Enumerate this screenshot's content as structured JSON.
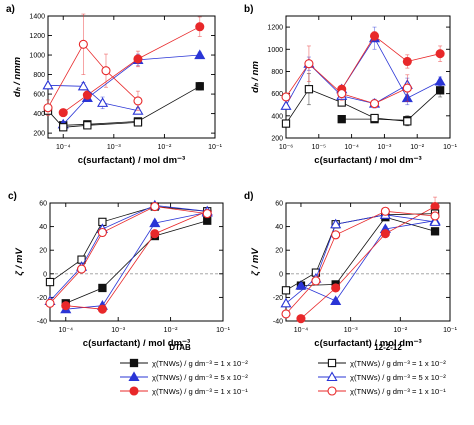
{
  "colors": {
    "black": "#111111",
    "blue": "#2a35d6",
    "red": "#e8282a",
    "grid": "#9a9a9a"
  },
  "legend": {
    "group_left": "DTAB",
    "group_right": "12-2-12",
    "entries_left": [
      "χ(TNWs) / g dm⁻³ = 1 x 10⁻²",
      "χ(TNWs) / g dm⁻³ = 5 x 10⁻²",
      "χ(TNWs) / g dm⁻³ = 1 x 10⁻¹"
    ],
    "entries_right": [
      "χ(TNWs) / g dm⁻³ = 1 x 10⁻²",
      "χ(TNWs) / g dm⁻³ = 5 x 10⁻²",
      "χ(TNWs) / g dm⁻³ = 1 x 10⁻¹"
    ]
  },
  "chart_data": [
    {
      "id": "a",
      "type": "line",
      "panel_label": "a)",
      "xlabel": "c(surfactant) / mol dm⁻³",
      "ylabel": "dₕ / nmm",
      "xscale": "log",
      "xlim": [
        5e-05,
        0.1
      ],
      "ylim": [
        150,
        1400
      ],
      "xticks": [
        0.0001,
        0.001,
        0.01,
        0.1
      ],
      "xtick_labels": [
        "10⁻⁴",
        "10⁻³",
        "10⁻²",
        "10⁻¹"
      ],
      "yticks": [
        200,
        400,
        600,
        800,
        1000,
        1200,
        1400
      ],
      "series": [
        {
          "color": "black",
          "filled": true,
          "marker": "square",
          "x": [
            0.0001,
            0.0003,
            0.003,
            0.05
          ],
          "y": [
            280,
            290,
            320,
            680
          ],
          "err": [
            0,
            20,
            30,
            40
          ]
        },
        {
          "color": "blue",
          "filled": true,
          "marker": "triangle",
          "x": [
            0.0001,
            0.0003,
            0.003,
            0.05
          ],
          "y": [
            290,
            560,
            950,
            1000
          ],
          "err": [
            0,
            30,
            60,
            30
          ]
        },
        {
          "color": "red",
          "filled": true,
          "marker": "circle",
          "x": [
            0.0001,
            0.0003,
            0.003,
            0.05
          ],
          "y": [
            410,
            590,
            960,
            1290
          ],
          "err": [
            0,
            40,
            80,
            100
          ]
        },
        {
          "color": "black",
          "filled": false,
          "marker": "square",
          "x": [
            0.0001,
            5e-05,
            0.0003,
            0.003
          ],
          "y": [
            260,
            430,
            280,
            310
          ],
          "err": [
            0,
            20,
            20,
            20
          ],
          "order": [
            1,
            0,
            2,
            3
          ]
        },
        {
          "color": "blue",
          "filled": false,
          "marker": "triangle",
          "x": [
            5e-05,
            0.00025,
            0.0006,
            0.003
          ],
          "y": [
            690,
            680,
            510,
            430
          ],
          "err": [
            20,
            40,
            60,
            30
          ]
        },
        {
          "color": "red",
          "filled": false,
          "marker": "circle",
          "x": [
            5e-05,
            0.00025,
            0.0007,
            0.003
          ],
          "y": [
            460,
            1110,
            840,
            530
          ],
          "err": [
            80,
            310,
            170,
            100
          ]
        }
      ]
    },
    {
      "id": "b",
      "type": "line",
      "panel_label": "b)",
      "xlabel": "c(surfactant) / mol dm⁻³",
      "ylabel": "dₕ / nm",
      "xscale": "log",
      "xlim": [
        1e-06,
        0.1
      ],
      "ylim": [
        200,
        1300
      ],
      "xticks": [
        1e-06,
        1e-05,
        0.0001,
        0.001,
        0.01,
        0.1
      ],
      "xtick_labels": [
        "10⁻⁶",
        "10⁻⁵",
        "10⁻⁴",
        "10⁻³",
        "10⁻²",
        "10⁻¹"
      ],
      "yticks": [
        200,
        400,
        600,
        800,
        1000,
        1200
      ],
      "series": [
        {
          "color": "black",
          "filled": true,
          "marker": "square",
          "x": [
            5e-05,
            0.0005,
            0.005,
            0.05
          ],
          "y": [
            370,
            370,
            360,
            630
          ],
          "err": [
            0,
            20,
            40,
            60
          ]
        },
        {
          "color": "blue",
          "filled": true,
          "marker": "triangle",
          "x": [
            5e-05,
            0.0005,
            0.005,
            0.05
          ],
          "y": [
            640,
            1100,
            560,
            710
          ],
          "err": [
            0,
            100,
            60,
            40
          ]
        },
        {
          "color": "red",
          "filled": true,
          "marker": "circle",
          "x": [
            5e-05,
            0.0005,
            0.005,
            0.05
          ],
          "y": [
            640,
            1120,
            890,
            960
          ],
          "err": [
            0,
            40,
            60,
            70
          ]
        },
        {
          "color": "black",
          "filled": false,
          "marker": "square",
          "x": [
            1e-06,
            5e-06,
            5e-05,
            0.0005,
            0.005
          ],
          "y": [
            330,
            640,
            520,
            380,
            350
          ],
          "err": [
            10,
            140,
            30,
            20,
            40
          ]
        },
        {
          "color": "blue",
          "filled": false,
          "marker": "triangle",
          "x": [
            1e-06,
            5e-06,
            5e-05,
            0.0005,
            0.005
          ],
          "y": [
            490,
            870,
            580,
            510,
            680
          ],
          "err": [
            20,
            60,
            30,
            40,
            60
          ]
        },
        {
          "color": "red",
          "filled": false,
          "marker": "circle",
          "x": [
            1e-06,
            5e-06,
            5e-05,
            0.0005,
            0.005
          ],
          "y": [
            570,
            870,
            600,
            510,
            650
          ],
          "err": [
            20,
            160,
            60,
            30,
            120
          ]
        }
      ]
    },
    {
      "id": "c",
      "type": "line",
      "panel_label": "c)",
      "xlabel": "c(surfactant) / mol dm⁻³",
      "ylabel": "ζ / mV",
      "xscale": "log",
      "xlim": [
        5e-05,
        0.1
      ],
      "ylim": [
        -40,
        60
      ],
      "xticks": [
        0.0001,
        0.001,
        0.01,
        0.1
      ],
      "xtick_labels": [
        "10⁻⁴",
        "10⁻³",
        "10⁻²",
        "10⁻¹"
      ],
      "yticks": [
        -40,
        -20,
        0,
        20,
        40,
        60
      ],
      "zero_line": true,
      "series": [
        {
          "color": "black",
          "filled": true,
          "marker": "square",
          "x": [
            0.0001,
            0.0005,
            0.005,
            0.05
          ],
          "y": [
            -25,
            -12,
            32,
            45
          ],
          "err": [
            2,
            2,
            2,
            2
          ]
        },
        {
          "color": "blue",
          "filled": true,
          "marker": "triangle",
          "x": [
            0.0001,
            0.0005,
            0.005,
            0.05
          ],
          "y": [
            -30,
            -27,
            43,
            52
          ],
          "err": [
            2,
            2,
            2,
            2
          ]
        },
        {
          "color": "red",
          "filled": true,
          "marker": "circle",
          "x": [
            0.0001,
            0.0005,
            0.005,
            0.05
          ],
          "y": [
            -27,
            -30,
            34,
            53
          ],
          "err": [
            2,
            2,
            2,
            2
          ]
        },
        {
          "color": "black",
          "filled": false,
          "marker": "square",
          "x": [
            5e-05,
            0.0002,
            0.0005,
            0.005,
            0.05
          ],
          "y": [
            -7,
            12,
            44,
            57,
            53
          ],
          "err": [
            1,
            1,
            2,
            2,
            2
          ]
        },
        {
          "color": "blue",
          "filled": false,
          "marker": "triangle",
          "x": [
            5e-05,
            0.0002,
            0.0005,
            0.005,
            0.05
          ],
          "y": [
            -23,
            6,
            38,
            58,
            53
          ],
          "err": [
            1,
            1,
            2,
            2,
            2
          ]
        },
        {
          "color": "red",
          "filled": false,
          "marker": "circle",
          "x": [
            5e-05,
            0.0002,
            0.0005,
            0.005,
            0.05
          ],
          "y": [
            -25,
            4,
            35,
            57,
            51
          ],
          "err": [
            1,
            1,
            2,
            2,
            2
          ]
        }
      ]
    },
    {
      "id": "d",
      "type": "line",
      "panel_label": "d)",
      "xlabel": "c(surfactant) / mol dm⁻³",
      "ylabel": "ζ / mV",
      "xscale": "log",
      "xlim": [
        5e-05,
        0.1
      ],
      "ylim": [
        -40,
        60
      ],
      "xticks": [
        0.0001,
        0.001,
        0.01,
        0.1
      ],
      "xtick_labels": [
        "10⁻⁴",
        "10⁻³",
        "10⁻²",
        "10⁻¹"
      ],
      "yticks": [
        -40,
        -20,
        0,
        20,
        40,
        60
      ],
      "zero_line": true,
      "series": [
        {
          "color": "black",
          "filled": true,
          "marker": "square",
          "x": [
            0.0001,
            0.0005,
            0.005,
            0.05
          ],
          "y": [
            -10,
            -9,
            48,
            36
          ],
          "err": [
            2,
            2,
            2,
            2
          ]
        },
        {
          "color": "blue",
          "filled": true,
          "marker": "triangle",
          "x": [
            0.0001,
            0.0005,
            0.005,
            0.05
          ],
          "y": [
            -10,
            -23,
            38,
            45
          ],
          "err": [
            2,
            2,
            2,
            2
          ]
        },
        {
          "color": "red",
          "filled": true,
          "marker": "circle",
          "x": [
            0.0001,
            0.0005,
            0.005,
            0.05
          ],
          "y": [
            -38,
            -12,
            34,
            57
          ],
          "err": [
            2,
            2,
            2,
            8
          ]
        },
        {
          "color": "black",
          "filled": false,
          "marker": "square",
          "x": [
            5e-05,
            0.0002,
            0.0005,
            0.005,
            0.05
          ],
          "y": [
            -14,
            1,
            42,
            50,
            51
          ],
          "err": [
            1,
            1,
            2,
            2,
            2
          ]
        },
        {
          "color": "blue",
          "filled": false,
          "marker": "triangle",
          "x": [
            5e-05,
            0.0002,
            0.0005,
            0.005,
            0.05
          ],
          "y": [
            -25,
            -4,
            42,
            50,
            44
          ],
          "err": [
            1,
            1,
            2,
            2,
            2
          ]
        },
        {
          "color": "red",
          "filled": false,
          "marker": "circle",
          "x": [
            5e-05,
            0.0002,
            0.0005,
            0.005,
            0.05
          ],
          "y": [
            -34,
            -6,
            33,
            53,
            49
          ],
          "err": [
            1,
            1,
            2,
            2,
            2
          ]
        }
      ]
    }
  ]
}
